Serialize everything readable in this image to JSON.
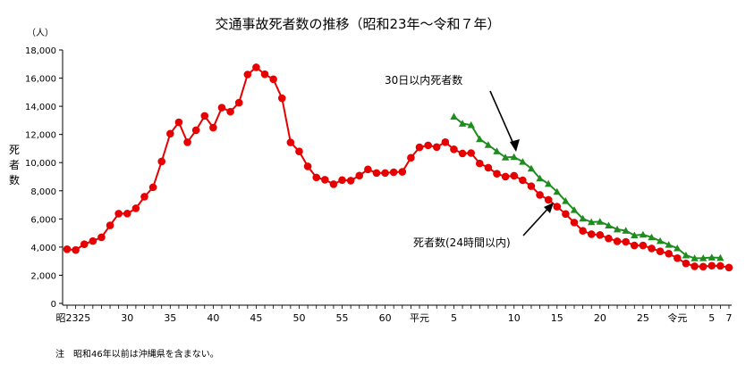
{
  "chart_data": {
    "type": "line",
    "title": "交通事故死者数の推移（昭和23年～令和７年）",
    "unit_label": "（人）",
    "ylabel": "死者数",
    "ylim": [
      0,
      18000
    ],
    "y_ticks": [
      "0",
      "2,000",
      "4,000",
      "6,000",
      "8,000",
      "10,000",
      "12,000",
      "14,000",
      "16,000",
      "18,000"
    ],
    "y_tick_values": [
      0,
      2000,
      4000,
      6000,
      8000,
      10000,
      12000,
      14000,
      16000,
      18000
    ],
    "x_tick_labels": [
      {
        "year": 1948,
        "label": "昭23"
      },
      {
        "year": 1950,
        "label": "25"
      },
      {
        "year": 1955,
        "label": "30"
      },
      {
        "year": 1960,
        "label": "35"
      },
      {
        "year": 1965,
        "label": "40"
      },
      {
        "year": 1970,
        "label": "45"
      },
      {
        "year": 1975,
        "label": "50"
      },
      {
        "year": 1980,
        "label": "55"
      },
      {
        "year": 1985,
        "label": "60"
      },
      {
        "year": 1989,
        "label": "平元"
      },
      {
        "year": 1993,
        "label": "5"
      },
      {
        "year": 2000,
        "label": "10"
      },
      {
        "year": 2005,
        "label": "15"
      },
      {
        "year": 2010,
        "label": "20"
      },
      {
        "year": 2015,
        "label": "25"
      },
      {
        "year": 2019,
        "label": "令元"
      },
      {
        "year": 2023,
        "label": "5"
      },
      {
        "year": 2025,
        "label": "7"
      }
    ],
    "series": [
      {
        "name": "死者数(24時間以内)",
        "color": "#e60000",
        "marker": "circle",
        "x": [
          1948,
          1949,
          1950,
          1951,
          1952,
          1953,
          1954,
          1955,
          1956,
          1957,
          1958,
          1959,
          1960,
          1961,
          1962,
          1963,
          1964,
          1965,
          1966,
          1967,
          1968,
          1969,
          1970,
          1971,
          1972,
          1973,
          1974,
          1975,
          1976,
          1977,
          1978,
          1979,
          1980,
          1981,
          1982,
          1983,
          1984,
          1985,
          1986,
          1987,
          1988,
          1989,
          1990,
          1991,
          1992,
          1993,
          1994,
          1995,
          1996,
          1997,
          1998,
          1999,
          2000,
          2001,
          2002,
          2003,
          2004,
          2005,
          2006,
          2007,
          2008,
          2009,
          2010,
          2011,
          2012,
          2013,
          2014,
          2015,
          2016,
          2017,
          2018,
          2019,
          2020,
          2021,
          2022,
          2023,
          2024,
          2025
        ],
        "values": [
          3848,
          3790,
          4202,
          4429,
          4696,
          5544,
          6374,
          6379,
          6751,
          7575,
          8248,
          10079,
          12055,
          12865,
          11445,
          12301,
          13318,
          12484,
          13904,
          13618,
          14256,
          16257,
          16765,
          16278,
          15918,
          14574,
          11432,
          10792,
          9734,
          8945,
          8783,
          8466,
          8760,
          8719,
          9073,
          9520,
          9262,
          9261,
          9317,
          9347,
          10344,
          11086,
          11227,
          11105,
          11451,
          10942,
          10649,
          10679,
          9942,
          9640,
          9211,
          9006,
          9066,
          8747,
          8326,
          7702,
          7358,
          6871,
          6352,
          5744,
          5155,
          4914,
          4863,
          4612,
          4411,
          4373,
          4113,
          4117,
          3904,
          3694,
          3532,
          3215,
          2839,
          2636,
          2610,
          2678,
          2663,
          2547
        ]
      },
      {
        "name": "30日以内死者数",
        "color": "#1e8c1e",
        "marker": "triangle",
        "x": [
          1993,
          1994,
          1995,
          1996,
          1997,
          1998,
          1999,
          2000,
          2001,
          2002,
          2003,
          2004,
          2005,
          2006,
          2007,
          2008,
          2009,
          2010,
          2011,
          2012,
          2013,
          2014,
          2015,
          2016,
          2017,
          2018,
          2019,
          2020,
          2021,
          2022,
          2023,
          2024
        ],
        "values": [
          13269,
          12768,
          12670,
          11674,
          11254,
          10805,
          10372,
          10403,
          10060,
          9575,
          8877,
          8492,
          7931,
          7272,
          6639,
          6023,
          5772,
          5806,
          5535,
          5261,
          5165,
          4838,
          4885,
          4698,
          4431,
          4166,
          3920,
          3416,
          3205,
          3216,
          3263,
          3233
        ]
      }
    ],
    "annotations": [
      "30日以内死者数",
      "死者数(24時間以内)"
    ],
    "note": "注　昭和46年以前は沖縄県を含まない。",
    "grid": false
  }
}
